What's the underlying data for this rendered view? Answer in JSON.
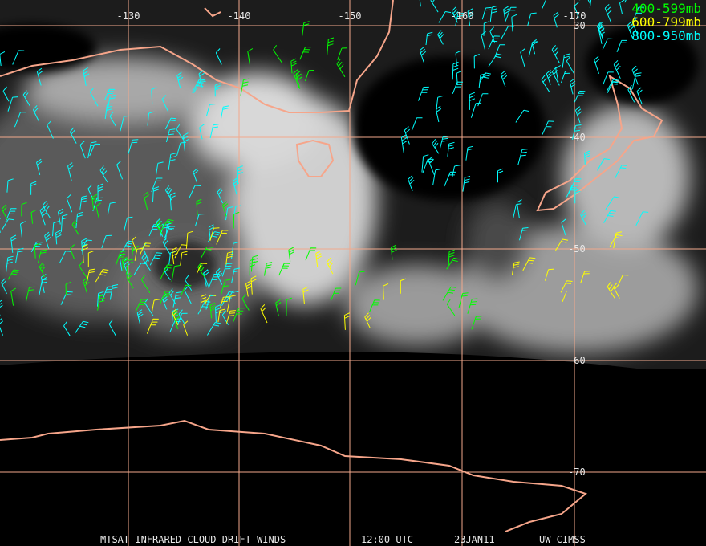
{
  "map": {
    "longitude_labels": [
      "-130",
      "-140",
      "-150",
      "-160",
      "-170"
    ],
    "latitude_labels": [
      "-30",
      "-40",
      "-50",
      "-60",
      "-70"
    ],
    "legend": [
      {
        "label": "400-599mb",
        "color": "#00ff00"
      },
      {
        "label": "600-799mb",
        "color": "#ffff00"
      },
      {
        "label": "800-950mb",
        "color": "#00ffff"
      }
    ],
    "footer": [
      "MTSAT INFRARED-CLOUD DRIFT WINDS",
      "12:00 UTC",
      "23JAN11",
      "UW-CIMSS"
    ]
  }
}
